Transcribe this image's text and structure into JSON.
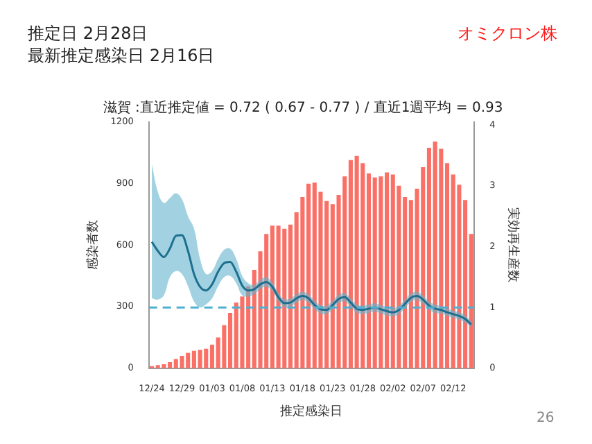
{
  "chart_data": {
    "type": "bar",
    "title": "滋賀 :直近推定値 = 0.72 ( 0.67 - 0.77 ) / 直近1週平均 = 0.93",
    "xlabel": "推定感染日",
    "ylabel": "感染者数",
    "y2label": "実効再生産数",
    "annotations": [
      "推定日  2月28日",
      "最新推定感染日  2月16日",
      "オミクロン株",
      "26"
    ],
    "categories": [
      "12/24",
      null,
      null,
      null,
      null,
      "12/29",
      null,
      null,
      null,
      null,
      "01/03",
      null,
      null,
      null,
      null,
      "01/08",
      null,
      null,
      null,
      null,
      "01/13",
      null,
      null,
      null,
      null,
      "01/18",
      null,
      null,
      null,
      null,
      "01/23",
      null,
      null,
      null,
      null,
      "01/28",
      null,
      null,
      null,
      null,
      "02/02",
      null,
      null,
      null,
      null,
      "02/07",
      null,
      null,
      null,
      null,
      "02/12",
      null,
      null,
      null
    ],
    "series": [
      {
        "color": "#fa7066",
        "values": [
          10,
          15,
          20,
          30,
          45,
          60,
          75,
          85,
          90,
          95,
          115,
          150,
          210,
          270,
          320,
          350,
          400,
          480,
          570,
          655,
          695,
          695,
          680,
          700,
          760,
          835,
          900,
          905,
          860,
          815,
          800,
          845,
          935,
          1015,
          1035,
          1000,
          950,
          930,
          935,
          955,
          945,
          890,
          835,
          820,
          875,
          980,
          1075,
          1105,
          1070,
          1000,
          945,
          895,
          820,
          655
        ]
      },
      {
        "type": "line",
        "axis": "y2",
        "color": "#1c6f8f",
        "marker": "none",
        "values": [
          2.08,
          1.93,
          1.83,
          1.97,
          2.18,
          2.19,
          1.93,
          1.55,
          1.34,
          1.28,
          1.38,
          1.59,
          1.73,
          1.75,
          1.59,
          1.36,
          1.28,
          1.3,
          1.38,
          1.42,
          1.34,
          1.17,
          1.07,
          1.08,
          1.15,
          1.19,
          1.15,
          1.04,
          0.97,
          0.96,
          1.04,
          1.14,
          1.17,
          1.08,
          0.98,
          0.96,
          0.98,
          1.0,
          0.97,
          0.94,
          0.92,
          0.96,
          1.06,
          1.16,
          1.19,
          1.13,
          1.03,
          0.98,
          0.96,
          0.92,
          0.89,
          0.86,
          0.81,
          0.72
        ],
        "lower": [
          1.15,
          1.13,
          1.2,
          1.5,
          1.6,
          1.55,
          1.35,
          1.1,
          1.0,
          1.05,
          1.15,
          1.35,
          1.5,
          1.52,
          1.4,
          1.2,
          1.18,
          1.22,
          1.3,
          1.34,
          1.27,
          1.1,
          1.0,
          1.01,
          1.08,
          1.12,
          1.08,
          0.97,
          0.9,
          0.89,
          0.97,
          1.07,
          1.1,
          1.01,
          0.91,
          0.89,
          0.91,
          0.93,
          0.9,
          0.87,
          0.85,
          0.89,
          0.99,
          1.09,
          1.12,
          1.06,
          0.96,
          0.91,
          0.9,
          0.86,
          0.83,
          0.8,
          0.75,
          0.67
        ],
        "upper": [
          3.36,
          2.9,
          2.72,
          2.8,
          2.88,
          2.78,
          2.5,
          2.3,
          1.8,
          1.55,
          1.6,
          1.8,
          1.95,
          1.97,
          1.8,
          1.52,
          1.4,
          1.37,
          1.46,
          1.5,
          1.41,
          1.24,
          1.14,
          1.15,
          1.22,
          1.26,
          1.22,
          1.11,
          1.04,
          1.03,
          1.11,
          1.21,
          1.24,
          1.15,
          1.05,
          1.03,
          1.05,
          1.07,
          1.04,
          1.01,
          0.99,
          1.03,
          1.13,
          1.23,
          1.26,
          1.2,
          1.1,
          1.05,
          1.02,
          0.98,
          0.95,
          0.92,
          0.87,
          0.77
        ]
      }
    ],
    "ref_lines": [
      {
        "axis": "y2",
        "value": 1,
        "color": "#4fb0d2",
        "line_style": "dashed"
      }
    ],
    "ylim": [
      0,
      1200
    ],
    "yticks": [
      0,
      300,
      600,
      900,
      1200
    ],
    "y2lim": [
      0,
      4.05
    ],
    "y2ticks": [
      0,
      1,
      2,
      3,
      4
    ],
    "grid": false,
    "legend": false
  }
}
